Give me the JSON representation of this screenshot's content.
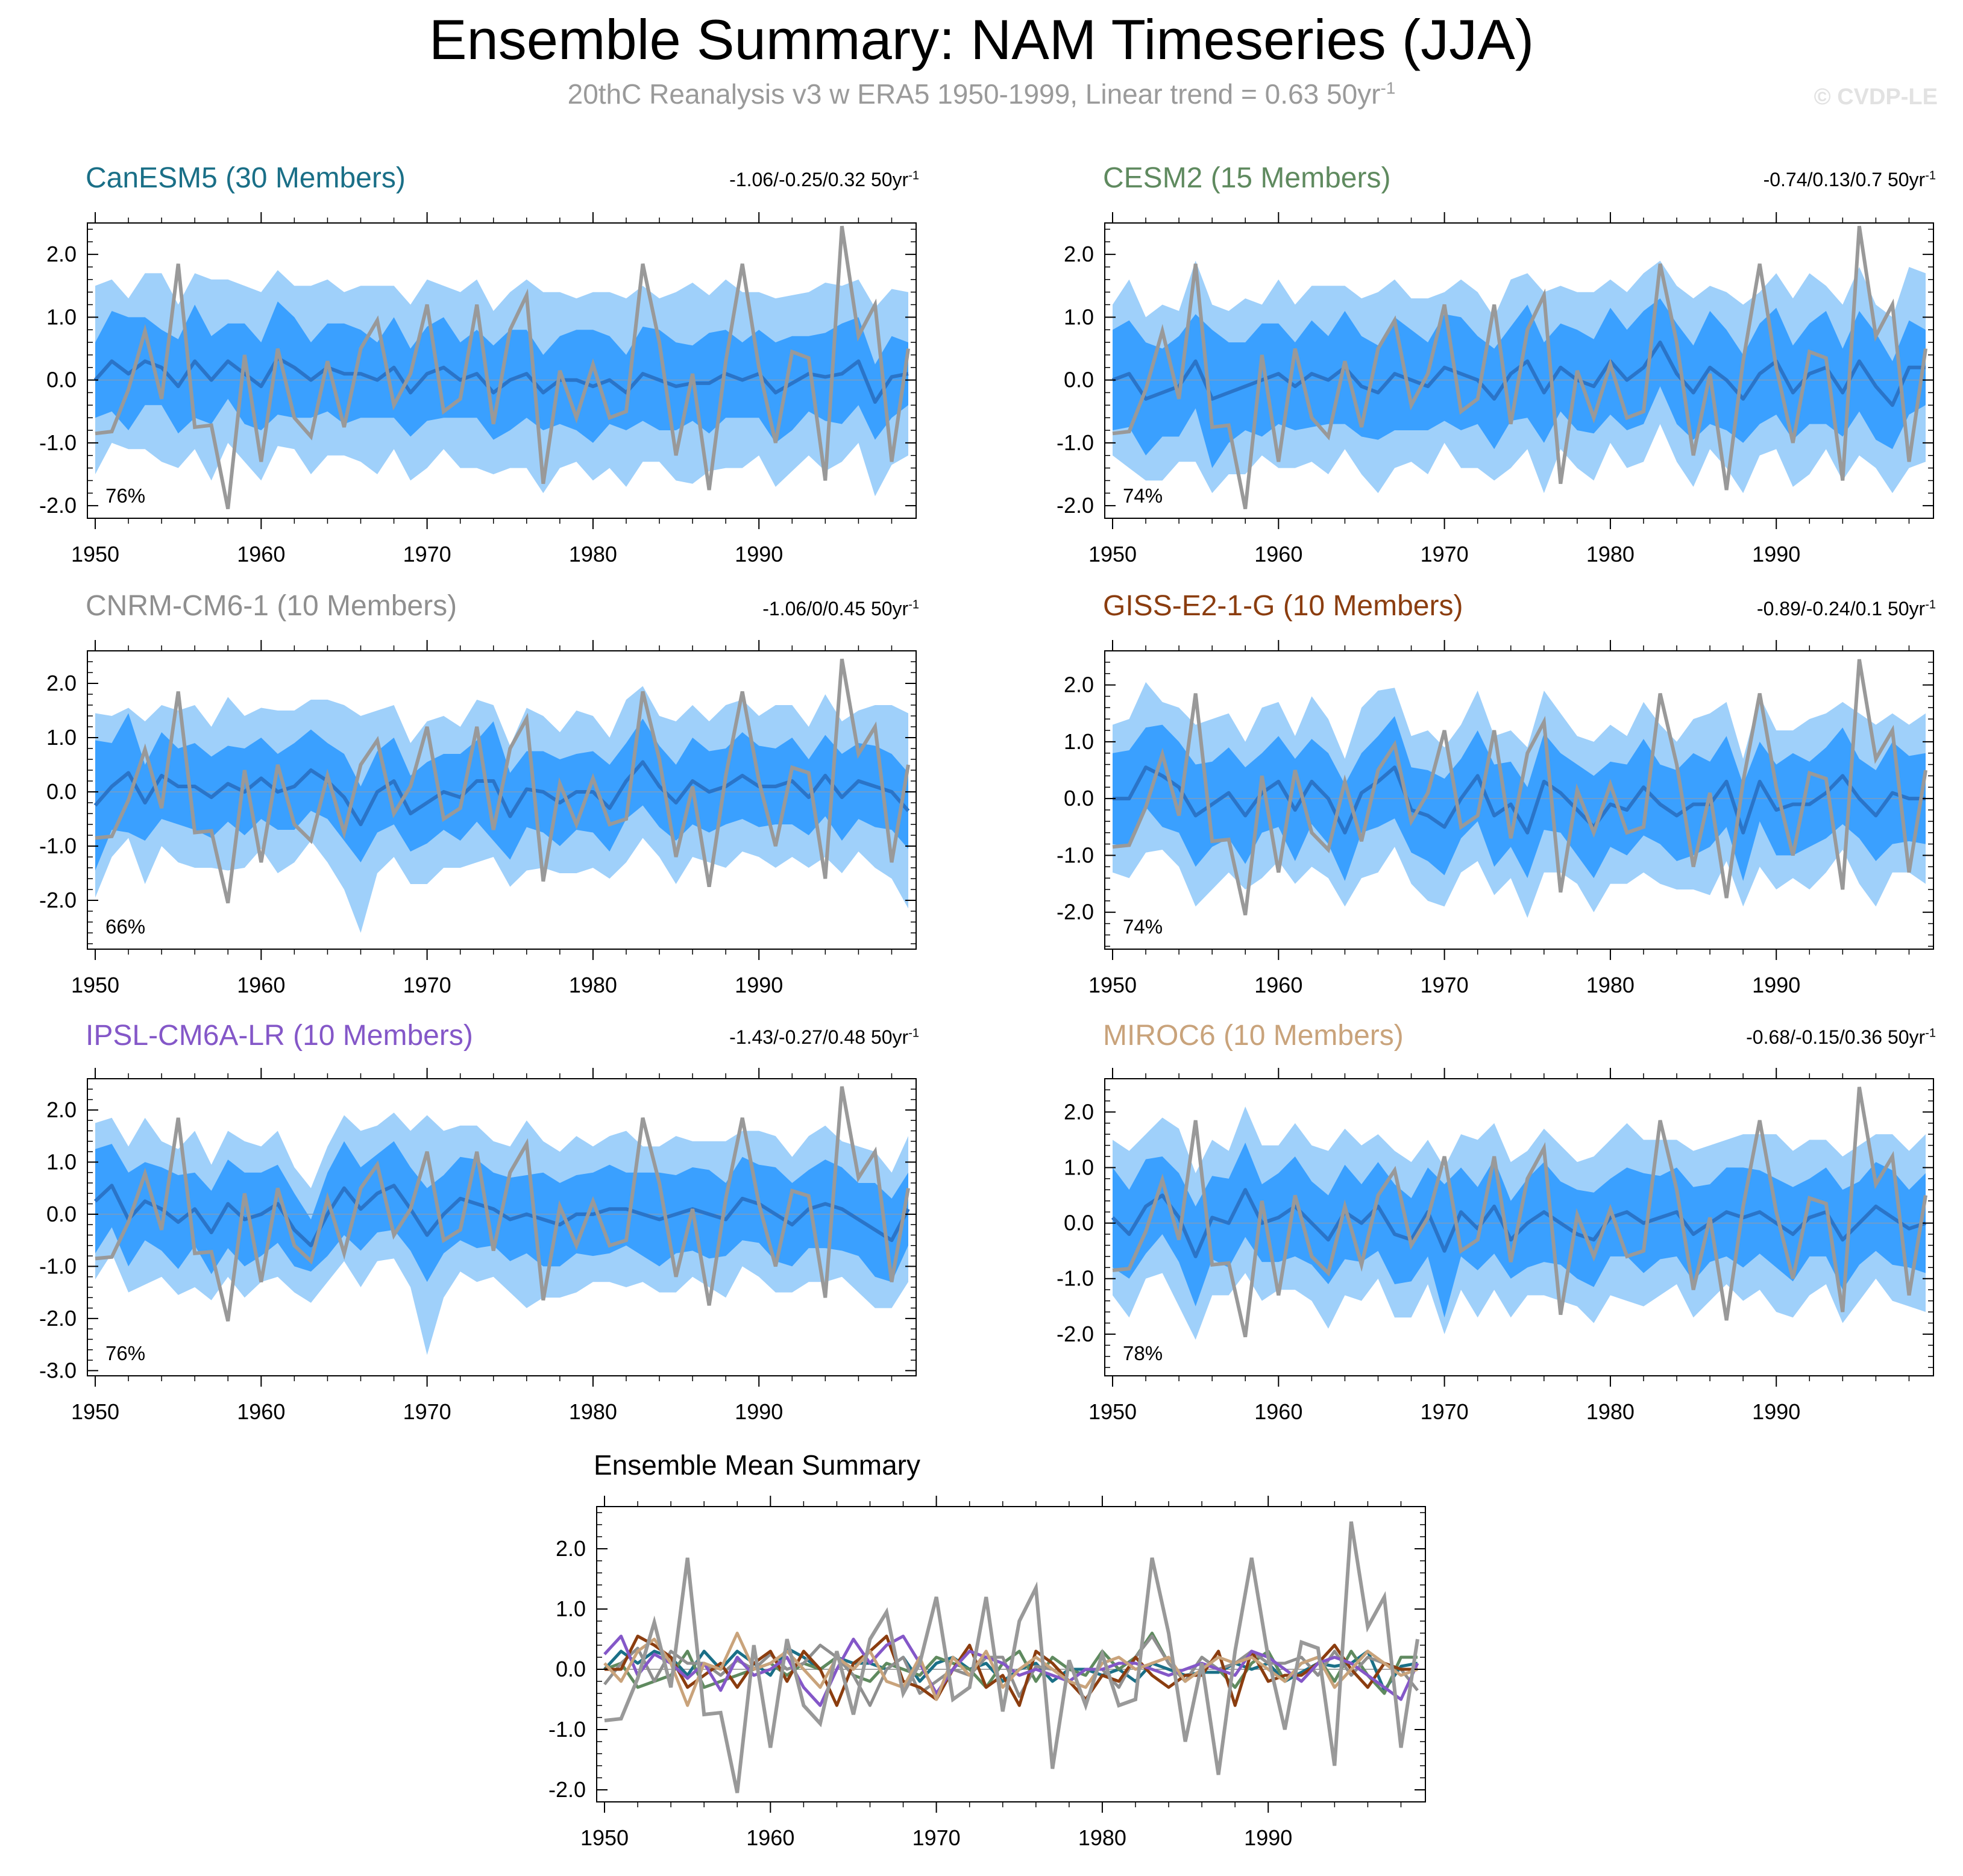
{
  "title": "Ensemble Summary: NAM Timeseries (JJA)",
  "subtitle": "20thC Reanalysis v3 w ERA5 1950-1999, Linear trend = 0.63 50yr",
  "subtitle_sup": "-1",
  "copyright": "© CVDP-LE",
  "colors": {
    "band_outer": "#9fd0fa",
    "band_inner": "#3aa0ff",
    "ens_mean_line": "#2a74c8",
    "observation": "#999999"
  },
  "chart_data": [
    {
      "type": "line",
      "title": "CanESM5 (30 Members)",
      "title_color": "#1a6f87",
      "stat": "-1.06/-0.25/0.32 50yr",
      "stat_sup": "-1",
      "percent": "76%",
      "ylim": [
        -2.2,
        2.5
      ],
      "yticks": [
        "2.0",
        "1.0",
        "0.0",
        "-1.0",
        "-2.0"
      ],
      "ytick_values": [
        2,
        1,
        0,
        -1,
        -2
      ],
      "xticks": [
        "1950",
        "1960",
        "1970",
        "1980",
        "1990"
      ]
    },
    {
      "type": "line",
      "title": "CESM2 (15 Members)",
      "title_color": "#5f8a5f",
      "stat": "-0.74/0.13/0.7 50yr",
      "stat_sup": "-1",
      "percent": "74%",
      "ylim": [
        -2.2,
        2.5
      ],
      "yticks": [
        "2.0",
        "1.0",
        "0.0",
        "-1.0",
        "-2.0"
      ],
      "ytick_values": [
        2,
        1,
        0,
        -1,
        -2
      ],
      "xticks": [
        "1950",
        "1960",
        "1970",
        "1980",
        "1990"
      ]
    },
    {
      "type": "line",
      "title": "CNRM-CM6-1 (10 Members)",
      "title_color": "#8f8f8f",
      "stat": "-1.06/0/0.45 50yr",
      "stat_sup": "-1",
      "percent": "66%",
      "ylim": [
        -2.9,
        2.6
      ],
      "yticks": [
        "2.0",
        "1.0",
        "0.0",
        "-1.0",
        "-2.0"
      ],
      "ytick_values": [
        2,
        1,
        0,
        -1,
        -2
      ],
      "xticks": [
        "1950",
        "1960",
        "1970",
        "1980",
        "1990"
      ]
    },
    {
      "type": "line",
      "title": "GISS-E2-1-G (10 Members)",
      "title_color": "#8b3d0f",
      "stat": "-0.89/-0.24/0.1 50yr",
      "stat_sup": "-1",
      "percent": "74%",
      "ylim": [
        -2.65,
        2.6
      ],
      "yticks": [
        "2.0",
        "1.0",
        "0.0",
        "-1.0",
        "-2.0"
      ],
      "ytick_values": [
        2,
        1,
        0,
        -1,
        -2
      ],
      "xticks": [
        "1950",
        "1960",
        "1970",
        "1980",
        "1990"
      ]
    },
    {
      "type": "line",
      "title": "IPSL-CM6A-LR (10 Members)",
      "title_color": "#8457c8",
      "stat": "-1.43/-0.27/0.48 50yr",
      "stat_sup": "-1",
      "percent": "76%",
      "ylim": [
        -3.1,
        2.6
      ],
      "yticks": [
        "2.0",
        "1.0",
        "0.0",
        "-1.0",
        "-2.0",
        "-3.0"
      ],
      "ytick_values": [
        2,
        1,
        0,
        -1,
        -2,
        -3
      ],
      "xticks": [
        "1950",
        "1960",
        "1970",
        "1980",
        "1990"
      ]
    },
    {
      "type": "line",
      "title": "MIROC6 (10 Members)",
      "title_color": "#c9a37b",
      "stat": "-0.68/-0.15/0.36 50yr",
      "stat_sup": "-1",
      "percent": "78%",
      "ylim": [
        -2.75,
        2.6
      ],
      "yticks": [
        "2.0",
        "1.0",
        "0.0",
        "-1.0",
        "-2.0"
      ],
      "ytick_values": [
        2,
        1,
        0,
        -1,
        -2
      ],
      "xticks": [
        "1950",
        "1960",
        "1970",
        "1980",
        "1990"
      ]
    },
    {
      "type": "line",
      "title": "Ensemble Mean Summary",
      "ylim": [
        -2.2,
        2.7
      ],
      "yticks": [
        "2.0",
        "1.0",
        "0.0",
        "-1.0",
        "-2.0"
      ],
      "ytick_values": [
        2,
        1,
        0,
        -1,
        -2
      ],
      "xticks": [
        "1950",
        "1960",
        "1970",
        "1980",
        "1990"
      ],
      "series_colors": [
        "#1a6f87",
        "#5f8a5f",
        "#8f8f8f",
        "#8b3d0f",
        "#8457c8",
        "#c9a37b"
      ]
    }
  ],
  "years": [
    1950,
    1951,
    1952,
    1953,
    1954,
    1955,
    1956,
    1957,
    1958,
    1959,
    1960,
    1961,
    1962,
    1963,
    1964,
    1965,
    1966,
    1967,
    1968,
    1969,
    1970,
    1971,
    1972,
    1973,
    1974,
    1975,
    1976,
    1977,
    1978,
    1979,
    1980,
    1981,
    1982,
    1983,
    1984,
    1985,
    1986,
    1987,
    1988,
    1989,
    1990,
    1991,
    1992,
    1993,
    1994,
    1995,
    1996,
    1997,
    1998,
    1999
  ],
  "observation": [
    -0.85,
    -0.82,
    -0.15,
    0.78,
    -0.3,
    1.85,
    -0.75,
    -0.72,
    -2.05,
    0.4,
    -1.3,
    0.5,
    -0.6,
    -0.9,
    0.3,
    -0.75,
    0.5,
    0.95,
    -0.4,
    0.1,
    1.2,
    -0.5,
    -0.3,
    1.2,
    -0.7,
    0.8,
    1.35,
    -1.65,
    0.15,
    -0.6,
    0.25,
    -0.6,
    -0.5,
    1.85,
    0.6,
    -1.2,
    0.1,
    -1.75,
    0.3,
    1.85,
    0.2,
    -1.0,
    0.45,
    0.35,
    -1.6,
    2.45,
    0.7,
    1.2,
    -1.3,
    0.5
  ],
  "ens_mean": [
    [
      0.0,
      0.3,
      0.1,
      0.3,
      0.2,
      -0.1,
      0.3,
      0.0,
      0.3,
      0.1,
      -0.1,
      0.35,
      0.2,
      0.0,
      0.2,
      0.1,
      0.1,
      0.0,
      0.2,
      -0.2,
      0.1,
      0.2,
      0.0,
      0.1,
      -0.2,
      0.0,
      0.1,
      -0.2,
      0.0,
      0.0,
      -0.1,
      0.0,
      -0.2,
      0.1,
      0.0,
      -0.1,
      -0.05,
      -0.05,
      0.1,
      0.0,
      0.1,
      -0.2,
      -0.05,
      0.1,
      0.05,
      0.1,
      0.3,
      -0.35,
      0.05,
      0.1
    ],
    [
      0.0,
      0.1,
      -0.3,
      -0.2,
      -0.1,
      0.3,
      -0.3,
      -0.2,
      -0.1,
      0.0,
      0.1,
      -0.1,
      0.1,
      0.0,
      0.2,
      -0.1,
      -0.2,
      0.1,
      0.0,
      -0.1,
      0.2,
      0.1,
      0.0,
      -0.3,
      0.1,
      0.3,
      -0.2,
      0.2,
      0.0,
      -0.1,
      0.3,
      0.0,
      0.2,
      0.6,
      0.1,
      -0.2,
      0.2,
      0.0,
      -0.3,
      0.1,
      0.3,
      -0.2,
      0.1,
      0.2,
      -0.2,
      0.3,
      -0.1,
      -0.4,
      0.2,
      0.2
    ],
    [
      -0.25,
      0.1,
      0.35,
      -0.2,
      0.3,
      0.1,
      0.1,
      -0.1,
      0.15,
      0.0,
      0.25,
      0.0,
      0.1,
      0.4,
      0.2,
      -0.1,
      -0.6,
      0.0,
      0.2,
      -0.4,
      -0.2,
      0.0,
      -0.1,
      0.2,
      0.2,
      -0.45,
      0.05,
      0.0,
      -0.2,
      0.0,
      0.0,
      -0.3,
      0.2,
      0.55,
      0.1,
      -0.2,
      0.2,
      0.0,
      0.1,
      0.3,
      0.1,
      0.1,
      0.2,
      -0.1,
      0.3,
      -0.1,
      0.2,
      0.1,
      0.0,
      -0.35
    ],
    [
      0.0,
      0.0,
      0.55,
      0.4,
      0.2,
      -0.3,
      -0.1,
      0.1,
      -0.3,
      0.1,
      0.3,
      -0.2,
      0.3,
      0.0,
      -0.6,
      0.1,
      0.3,
      0.55,
      -0.2,
      -0.3,
      -0.5,
      0.0,
      0.4,
      -0.3,
      -0.1,
      -0.6,
      0.3,
      0.1,
      -0.2,
      -0.5,
      -0.1,
      -0.2,
      0.2,
      -0.1,
      -0.3,
      -0.1,
      -0.1,
      0.3,
      -0.6,
      0.3,
      -0.2,
      -0.1,
      -0.1,
      0.1,
      0.4,
      0.0,
      -0.3,
      0.1,
      0.0,
      0.0
    ],
    [
      0.25,
      0.55,
      -0.1,
      0.25,
      0.1,
      -0.15,
      0.1,
      -0.35,
      0.2,
      -0.1,
      0.0,
      0.2,
      -0.3,
      -0.6,
      0.0,
      0.5,
      0.1,
      0.4,
      0.55,
      0.1,
      -0.4,
      0.0,
      0.3,
      0.2,
      0.1,
      -0.1,
      0.0,
      -0.1,
      -0.2,
      0.0,
      0.0,
      0.1,
      0.1,
      0.0,
      -0.1,
      0.0,
      0.1,
      0.0,
      -0.1,
      0.3,
      0.2,
      0.0,
      -0.2,
      0.1,
      0.2,
      0.1,
      -0.1,
      -0.3,
      -0.5,
      0.1
    ],
    [
      0.1,
      -0.2,
      0.3,
      0.5,
      0.1,
      -0.6,
      0.1,
      0.0,
      0.6,
      0.0,
      0.1,
      0.3,
      0.0,
      -0.3,
      0.2,
      0.0,
      0.3,
      -0.2,
      -0.3,
      0.2,
      -0.5,
      0.2,
      -0.1,
      0.3,
      -0.3,
      0.0,
      0.2,
      0.0,
      -0.2,
      -0.3,
      0.1,
      0.2,
      0.0,
      0.1,
      0.2,
      -0.2,
      0.0,
      0.2,
      0.1,
      0.2,
      0.0,
      -0.2,
      0.1,
      0.2,
      -0.3,
      0.0,
      0.3,
      0.1,
      -0.1,
      0.0
    ]
  ],
  "inner_halfwidth": [
    [
      0.6,
      0.8,
      0.9,
      0.7,
      0.6,
      0.75,
      0.9,
      0.7,
      0.6,
      0.8,
      0.7,
      0.9,
      0.8,
      0.6,
      0.7,
      0.8,
      0.7,
      0.6,
      0.8,
      0.7,
      0.75,
      0.8,
      0.6,
      0.7,
      0.75,
      0.8,
      0.7,
      0.6,
      0.7,
      0.8,
      0.9,
      0.7,
      0.6,
      0.75,
      0.8,
      0.7,
      0.6,
      0.8,
      0.7,
      0.6,
      0.7,
      0.8,
      0.75,
      0.6,
      0.7,
      0.8,
      0.7,
      0.6,
      0.65,
      0.5
    ],
    [
      0.8,
      0.85,
      0.9,
      0.7,
      0.8,
      0.75,
      1.1,
      0.8,
      0.7,
      0.9,
      0.8,
      0.7,
      0.85,
      0.7,
      0.9,
      0.8,
      0.75,
      0.9,
      0.8,
      0.7,
      0.85,
      0.9,
      0.7,
      0.8,
      0.75,
      0.9,
      0.8,
      0.7,
      0.8,
      0.75,
      0.85,
      0.8,
      0.9,
      0.7,
      0.8,
      0.75,
      0.9,
      0.8,
      0.7,
      0.8,
      0.85,
      0.75,
      0.8,
      0.9,
      0.7,
      0.8,
      0.85,
      0.7,
      0.75,
      0.6
    ],
    [
      1.2,
      0.8,
      1.1,
      0.7,
      0.8,
      0.7,
      0.8,
      0.75,
      0.7,
      0.8,
      0.75,
      0.7,
      0.8,
      0.75,
      0.7,
      0.8,
      0.7,
      0.75,
      0.8,
      0.7,
      0.75,
      0.7,
      0.8,
      0.75,
      1.1,
      0.8,
      0.7,
      0.75,
      0.8,
      0.7,
      0.75,
      0.8,
      0.7,
      0.8,
      0.75,
      0.7,
      0.8,
      0.75,
      0.7,
      0.8,
      0.75,
      0.7,
      0.8,
      0.7,
      0.75,
      0.8,
      0.7,
      0.75,
      0.7,
      0.7
    ],
    [
      0.8,
      0.85,
      0.7,
      0.9,
      0.8,
      0.9,
      0.75,
      0.8,
      0.85,
      0.7,
      0.8,
      0.9,
      0.75,
      0.8,
      0.85,
      0.7,
      0.8,
      0.9,
      0.75,
      0.8,
      0.85,
      0.7,
      0.8,
      0.9,
      0.75,
      0.8,
      0.85,
      0.7,
      0.8,
      0.9,
      0.75,
      0.8,
      0.85,
      0.7,
      0.8,
      0.9,
      0.75,
      0.8,
      0.85,
      0.7,
      0.8,
      0.9,
      0.75,
      0.8,
      0.85,
      0.7,
      0.8,
      0.9,
      0.75,
      0.8
    ],
    [
      1.0,
      0.8,
      0.9,
      0.75,
      0.8,
      0.9,
      0.7,
      0.8,
      0.85,
      0.9,
      0.8,
      0.75,
      0.7,
      0.5,
      0.8,
      0.9,
      0.8,
      0.75,
      0.85,
      0.8,
      0.9,
      0.75,
      0.8,
      0.85,
      0.7,
      0.8,
      0.75,
      0.9,
      0.8,
      0.75,
      0.8,
      0.85,
      0.7,
      0.8,
      0.9,
      0.75,
      0.8,
      0.85,
      0.7,
      0.8,
      0.75,
      0.9,
      0.8,
      0.75,
      0.85,
      0.8,
      0.7,
      0.9,
      0.8,
      0.7
    ],
    [
      0.9,
      0.8,
      0.85,
      0.7,
      0.8,
      0.9,
      0.75,
      0.8,
      0.85,
      0.7,
      0.8,
      0.9,
      0.75,
      0.8,
      0.85,
      0.7,
      0.8,
      0.9,
      0.75,
      0.8,
      1.2,
      0.8,
      0.75,
      0.85,
      0.7,
      0.8,
      0.9,
      0.75,
      0.8,
      0.85,
      0.7,
      0.8,
      0.9,
      0.75,
      0.8,
      0.85,
      0.7,
      0.8,
      0.9,
      0.75,
      0.8,
      0.85,
      0.7,
      0.8,
      0.9,
      0.75,
      0.8,
      0.85,
      0.7,
      0.9
    ]
  ],
  "outer_halfwidth": [
    [
      1.5,
      1.3,
      1.2,
      1.4,
      1.5,
      1.3,
      1.4,
      1.6,
      1.3,
      1.4,
      1.5,
      1.4,
      1.3,
      1.5,
      1.4,
      1.3,
      1.4,
      1.5,
      1.3,
      1.4,
      1.5,
      1.3,
      1.4,
      1.5,
      1.3,
      1.4,
      1.5,
      1.6,
      1.4,
      1.3,
      1.5,
      1.4,
      1.5,
      1.4,
      1.3,
      1.5,
      1.6,
      1.4,
      1.5,
      1.4,
      1.3,
      1.5,
      1.4,
      1.3,
      1.5,
      1.4,
      1.3,
      1.5,
      1.4,
      1.3
    ],
    [
      1.2,
      1.5,
      1.3,
      1.4,
      1.2,
      1.6,
      1.5,
      1.3,
      1.4,
      1.2,
      1.5,
      1.3,
      1.4,
      1.5,
      1.3,
      1.4,
      1.6,
      1.5,
      1.3,
      1.4,
      1.2,
      1.5,
      1.4,
      1.3,
      1.5,
      1.4,
      1.6,
      1.3,
      1.4,
      1.5,
      1.3,
      1.4,
      1.5,
      1.3,
      1.4,
      1.5,
      1.3,
      1.4,
      1.5,
      1.3,
      1.4,
      1.5,
      1.6,
      1.3,
      1.4,
      1.5,
      1.3,
      1.4,
      1.6,
      1.5
    ],
    [
      1.7,
      1.3,
      1.2,
      1.5,
      1.3,
      1.4,
      1.5,
      1.3,
      1.6,
      1.4,
      1.3,
      1.5,
      1.4,
      1.3,
      1.5,
      1.7,
      2.0,
      1.5,
      1.4,
      1.3,
      1.5,
      1.4,
      1.3,
      1.5,
      1.4,
      1.3,
      1.5,
      1.4,
      1.3,
      1.5,
      1.4,
      1.3,
      1.5,
      1.4,
      1.3,
      1.5,
      1.4,
      1.3,
      1.5,
      1.4,
      1.3,
      1.5,
      1.4,
      1.3,
      1.5,
      1.4,
      1.3,
      1.5,
      1.6,
      1.8
    ],
    [
      1.3,
      1.4,
      1.5,
      1.3,
      1.4,
      1.6,
      1.5,
      1.4,
      1.3,
      1.5,
      1.4,
      1.3,
      1.5,
      1.4,
      1.3,
      1.5,
      1.6,
      1.4,
      1.3,
      1.5,
      1.4,
      1.3,
      1.5,
      1.4,
      1.3,
      1.5,
      1.6,
      1.4,
      1.3,
      1.5,
      1.4,
      1.3,
      1.5,
      1.4,
      1.3,
      1.5,
      1.6,
      1.4,
      1.3,
      1.5,
      1.4,
      1.3,
      1.5,
      1.4,
      1.3,
      1.5,
      1.6,
      1.4,
      1.3,
      1.5
    ],
    [
      1.5,
      1.3,
      1.4,
      1.6,
      1.3,
      1.4,
      1.5,
      1.3,
      1.4,
      1.5,
      1.3,
      1.4,
      1.2,
      1.1,
      1.3,
      1.4,
      1.5,
      1.3,
      1.4,
      1.5,
      2.3,
      1.6,
      1.4,
      1.5,
      1.3,
      1.4,
      1.8,
      1.5,
      1.4,
      1.5,
      1.3,
      1.4,
      1.5,
      1.3,
      1.4,
      1.5,
      1.3,
      1.4,
      1.5,
      1.3,
      1.4,
      1.5,
      1.3,
      1.4,
      1.5,
      1.3,
      1.4,
      1.5,
      1.3,
      1.4
    ],
    [
      1.4,
      1.5,
      1.3,
      1.4,
      1.6,
      1.5,
      1.4,
      1.3,
      1.5,
      1.4,
      1.3,
      1.5,
      1.4,
      1.6,
      1.5,
      1.4,
      1.3,
      1.5,
      1.4,
      1.3,
      1.5,
      1.4,
      1.6,
      1.5,
      1.4,
      1.3,
      1.5,
      1.4,
      1.3,
      1.5,
      1.4,
      1.6,
      1.5,
      1.4,
      1.3,
      1.5,
      1.4,
      1.3,
      1.5,
      1.4,
      1.6,
      1.5,
      1.4,
      1.3,
      1.5,
      1.4,
      1.3,
      1.5,
      1.4,
      1.6
    ]
  ]
}
